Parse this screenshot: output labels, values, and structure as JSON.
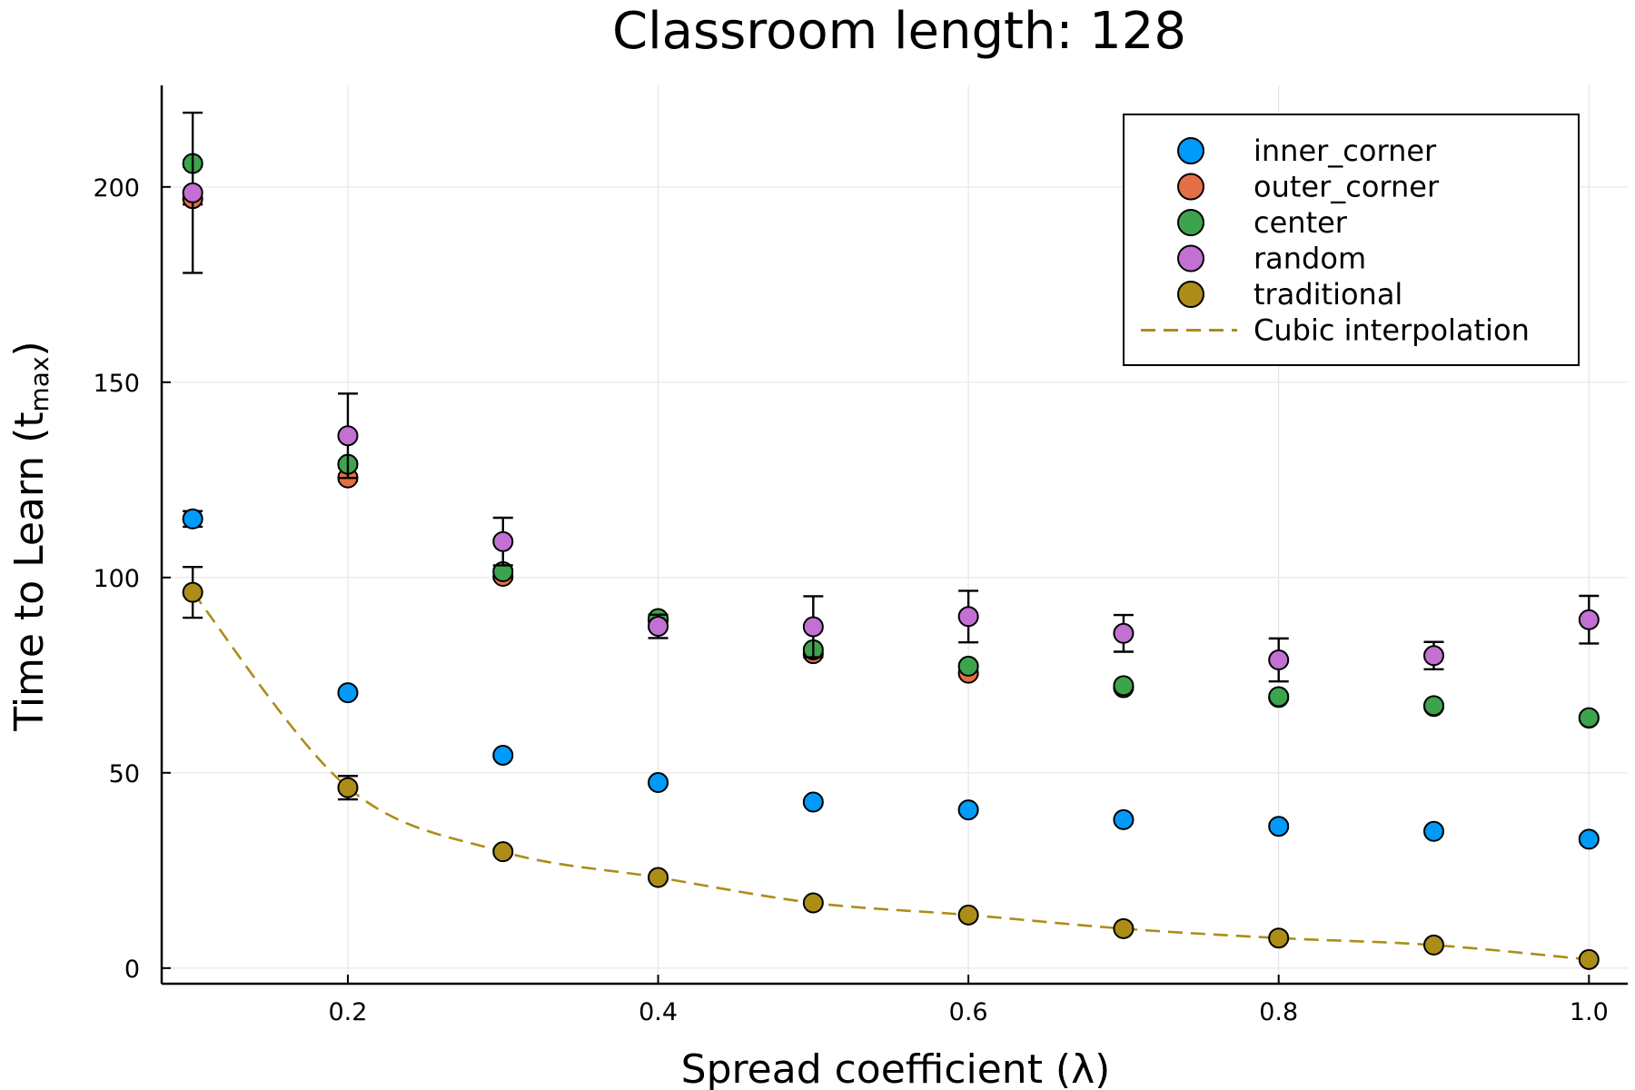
{
  "chart_data": {
    "type": "scatter",
    "title": "Classroom length: 128",
    "xlabel": "Spread coefficient (λ)",
    "ylabel": "Time to Learn (t",
    "ylabel_sub": "max",
    "ylabel_end": ")",
    "xlim": [
      0.08,
      1.025
    ],
    "ylim": [
      -4,
      226
    ],
    "xticks": [
      0.2,
      0.4,
      0.6,
      0.8,
      1.0
    ],
    "xtick_labels": [
      "0.2",
      "0.4",
      "0.6",
      "0.8",
      "1.0"
    ],
    "yticks": [
      0,
      50,
      100,
      150,
      200
    ],
    "ytick_labels": [
      "0",
      "50",
      "100",
      "150",
      "200"
    ],
    "grid": true,
    "legend_position": "top-right",
    "x": [
      0.1,
      0.2,
      0.3,
      0.4,
      0.5,
      0.6,
      0.7,
      0.8,
      0.9,
      1.0
    ],
    "series": [
      {
        "name": "inner_corner",
        "color": "#009af9",
        "values": [
          115,
          70.5,
          54.5,
          47.5,
          42.5,
          40.5,
          38,
          36.3,
          35,
          33
        ],
        "err": [
          2,
          0.6,
          0.6,
          0.6,
          0.6,
          0.6,
          0.6,
          0.6,
          0.6,
          0.6
        ]
      },
      {
        "name": "outer_corner",
        "color": "#e26f46",
        "values": [
          197,
          125.5,
          100.3,
          89,
          80.5,
          75.5,
          71.8,
          69.3,
          67,
          64
        ],
        "err": [
          1.5,
          0.8,
          0.8,
          0.6,
          0.6,
          0.6,
          0.6,
          0.6,
          0.6,
          0.6
        ]
      },
      {
        "name": "center",
        "color": "#3da44d",
        "values": [
          206,
          129,
          101.5,
          89.5,
          81.5,
          77.3,
          72.3,
          69.5,
          67.2,
          64.1
        ],
        "err": [
          0.8,
          0.8,
          0.8,
          0.6,
          0.6,
          0.6,
          0.6,
          0.6,
          0.6,
          0.6
        ]
      },
      {
        "name": "random",
        "color": "#c271d2",
        "values": [
          198.5,
          136.3,
          109.2,
          87.5,
          87.4,
          90,
          85.7,
          78.9,
          80,
          89.2
        ],
        "err": [
          20.5,
          10.8,
          6.1,
          3,
          7.8,
          6.6,
          4.7,
          5.5,
          3.5,
          6.1
        ]
      },
      {
        "name": "traditional",
        "color": "#ac8d18",
        "values": [
          96.2,
          46.2,
          29.8,
          23.2,
          16.7,
          13.6,
          10.1,
          7.7,
          5.9,
          2.2
        ],
        "err": [
          6.5,
          3,
          0.6,
          0.6,
          0.4,
          0.4,
          0.4,
          0.4,
          0.4,
          0.4
        ]
      }
    ],
    "interpolation": {
      "name": "Cubic interpolation",
      "color": "#ac8d18",
      "style": "dashed",
      "follows": "traditional"
    }
  }
}
